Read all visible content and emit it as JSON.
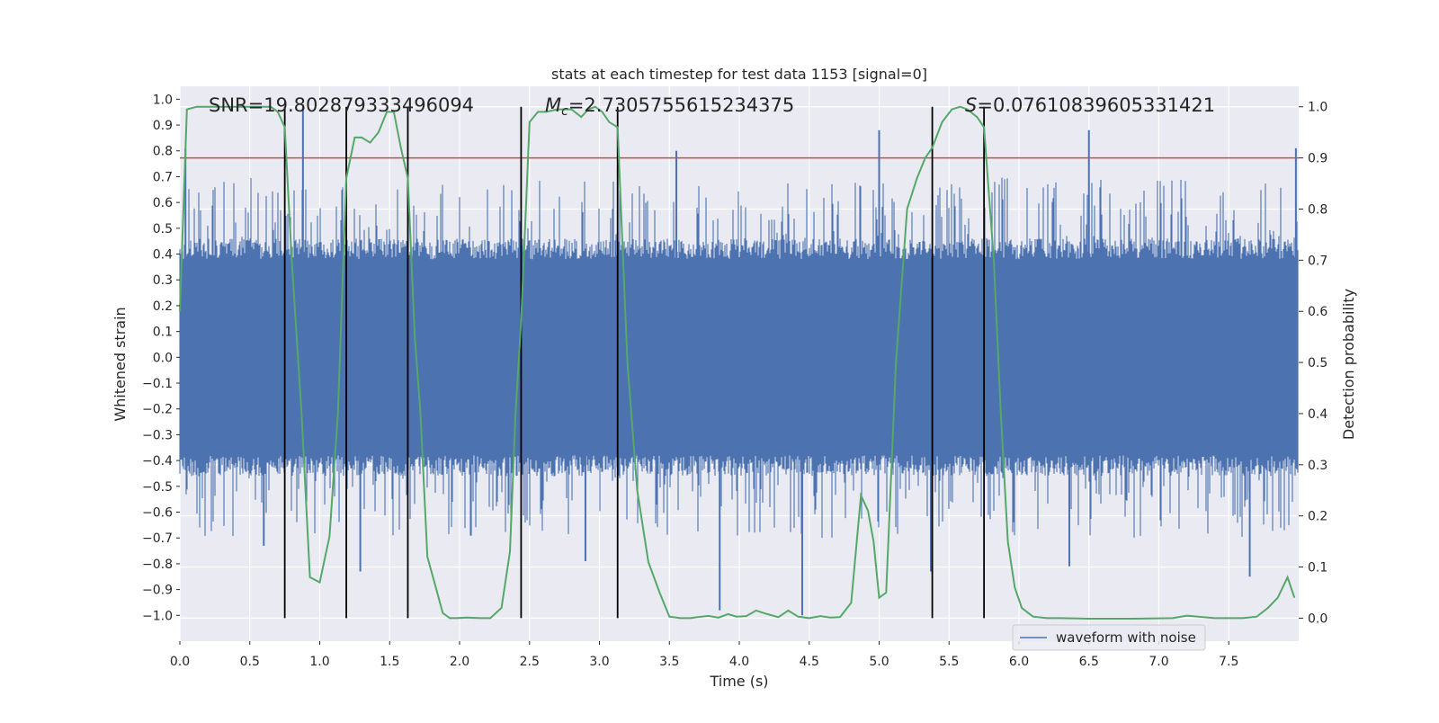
{
  "chart_data": {
    "type": "line",
    "title": "stats at each timestep for test data 1153 [signal=0]",
    "xlabel": "Time (s)",
    "ylabel_left": "Whitened strain",
    "ylabel_right": "Detection probability",
    "xlim": [
      0.0,
      8.0
    ],
    "ylim_left": [
      -1.1,
      1.05
    ],
    "ylim_right": [
      -0.045,
      1.04
    ],
    "x_ticks": [
      0.0,
      0.5,
      1.0,
      1.5,
      2.0,
      2.5,
      3.0,
      3.5,
      4.0,
      4.5,
      5.0,
      5.5,
      6.0,
      6.5,
      7.0,
      7.5
    ],
    "x_tick_labels": [
      "0.0",
      "0.5",
      "1.0",
      "1.5",
      "2.0",
      "2.5",
      "3.0",
      "3.5",
      "4.0",
      "4.5",
      "5.0",
      "5.5",
      "6.0",
      "6.5",
      "7.0",
      "7.5"
    ],
    "y_ticks_left": [
      1.0,
      0.9,
      0.8,
      0.7,
      0.6,
      0.5,
      0.4,
      0.3,
      0.2,
      0.1,
      0.0,
      -0.1,
      -0.2,
      -0.3,
      -0.4,
      -0.5,
      -0.6,
      -0.7,
      -0.8,
      -0.9,
      -1.0
    ],
    "y_tick_labels_left": [
      "1.0",
      "0.9",
      "0.8",
      "0.7",
      "0.6",
      "0.5",
      "0.4",
      "0.3",
      "0.2",
      "0.1",
      "0.0",
      "−0.1",
      "−0.2",
      "−0.3",
      "−0.4",
      "−0.5",
      "−0.6",
      "−0.7",
      "−0.8",
      "−0.9",
      "−1.0"
    ],
    "y_ticks_right": [
      1.0,
      0.9,
      0.8,
      0.7,
      0.6,
      0.5,
      0.4,
      0.3,
      0.2,
      0.1,
      0.0
    ],
    "y_tick_labels_right": [
      "1.0",
      "0.9",
      "0.8",
      "0.7",
      "0.6",
      "0.5",
      "0.4",
      "0.3",
      "0.2",
      "0.1",
      "0.0"
    ],
    "grid": true,
    "legend": {
      "position": "lower-right",
      "entries": [
        "waveform with noise"
      ]
    },
    "annotations": {
      "snr": "SNR=19.802879333496094",
      "mc_symbol": "M",
      "mc_subscript": "c",
      "mc_value": "=2.7305755615234375",
      "s_symbol": "S",
      "s_value": "=0.07610839605331421"
    },
    "threshold_line": {
      "axis": "right",
      "y": 0.9
    },
    "vertical_lines_x": [
      0.75,
      1.19,
      1.63,
      2.44,
      3.13,
      5.38,
      5.75
    ],
    "series": [
      {
        "name": "waveform with noise",
        "axis": "left",
        "kind": "noise_band",
        "dense_band": [
          -0.38,
          0.38
        ],
        "typical_peak_range": [
          0.4,
          0.7
        ],
        "notable_peaks": [
          {
            "x": 0.88,
            "y": 0.98
          },
          {
            "x": 0.04,
            "y": 0.81
          },
          {
            "x": 7.98,
            "y": 0.81
          },
          {
            "x": 5.0,
            "y": 0.88
          },
          {
            "x": 3.55,
            "y": 0.8
          },
          {
            "x": 6.5,
            "y": 0.88
          },
          {
            "x": 3.86,
            "y": -0.98
          },
          {
            "x": 4.45,
            "y": -1.0
          },
          {
            "x": 7.65,
            "y": -0.85
          },
          {
            "x": 1.29,
            "y": -0.83
          },
          {
            "x": 0.6,
            "y": -0.73
          },
          {
            "x": 2.9,
            "y": -0.79
          },
          {
            "x": 5.37,
            "y": -0.83
          },
          {
            "x": 6.36,
            "y": -0.81
          }
        ]
      },
      {
        "name": "",
        "axis": "right",
        "kind": "line",
        "x": [
          0.0,
          0.05,
          0.12,
          0.3,
          0.5,
          0.65,
          0.7,
          0.75,
          0.8,
          0.87,
          0.93,
          1.0,
          1.07,
          1.13,
          1.19,
          1.25,
          1.3,
          1.36,
          1.42,
          1.48,
          1.53,
          1.58,
          1.63,
          1.68,
          1.72,
          1.77,
          1.83,
          1.88,
          1.93,
          1.98,
          2.05,
          2.15,
          2.22,
          2.3,
          2.36,
          2.4,
          2.44,
          2.5,
          2.56,
          2.62,
          2.7,
          2.8,
          2.87,
          2.92,
          2.97,
          3.02,
          3.07,
          3.13,
          3.2,
          3.27,
          3.35,
          3.43,
          3.5,
          3.58,
          3.65,
          3.7,
          3.78,
          3.85,
          3.92,
          3.98,
          4.05,
          4.12,
          4.2,
          4.28,
          4.35,
          4.42,
          4.5,
          4.58,
          4.65,
          4.72,
          4.8,
          4.87,
          4.92,
          4.96,
          5.0,
          5.05,
          5.12,
          5.2,
          5.27,
          5.33,
          5.38,
          5.45,
          5.52,
          5.58,
          5.63,
          5.7,
          5.75,
          5.82,
          5.87,
          5.92,
          5.97,
          6.02,
          6.1,
          6.2,
          6.3,
          6.5,
          6.8,
          7.1,
          7.2,
          7.4,
          7.6,
          7.7,
          7.78,
          7.85,
          7.92,
          7.97
        ],
        "y": [
          0.6,
          0.995,
          1.0,
          1.0,
          1.0,
          1.0,
          0.99,
          0.96,
          0.7,
          0.4,
          0.08,
          0.07,
          0.16,
          0.4,
          0.86,
          0.94,
          0.94,
          0.93,
          0.95,
          0.99,
          0.99,
          0.92,
          0.86,
          0.55,
          0.4,
          0.12,
          0.06,
          0.01,
          0.0,
          0.0,
          0.001,
          0.0,
          0.0,
          0.02,
          0.13,
          0.4,
          0.58,
          0.97,
          0.99,
          0.99,
          0.995,
          0.995,
          0.98,
          0.995,
          1.0,
          0.99,
          0.97,
          0.96,
          0.5,
          0.25,
          0.11,
          0.05,
          0.003,
          0.0,
          0.0,
          0.002,
          0.0045,
          0.001,
          0.008,
          0.003,
          0.004,
          0.015,
          0.008,
          0.002,
          0.015,
          0.003,
          0.0,
          0.004,
          0.001,
          0.002,
          0.03,
          0.24,
          0.21,
          0.15,
          0.04,
          0.05,
          0.5,
          0.8,
          0.86,
          0.9,
          0.92,
          0.97,
          0.995,
          1.0,
          0.995,
          0.98,
          0.96,
          0.7,
          0.4,
          0.15,
          0.06,
          0.02,
          0.003,
          0.0,
          0.0,
          -0.001,
          -0.001,
          0.0,
          0.005,
          0.0,
          0.0,
          0.003,
          0.02,
          0.04,
          0.08,
          0.04
        ]
      }
    ]
  }
}
